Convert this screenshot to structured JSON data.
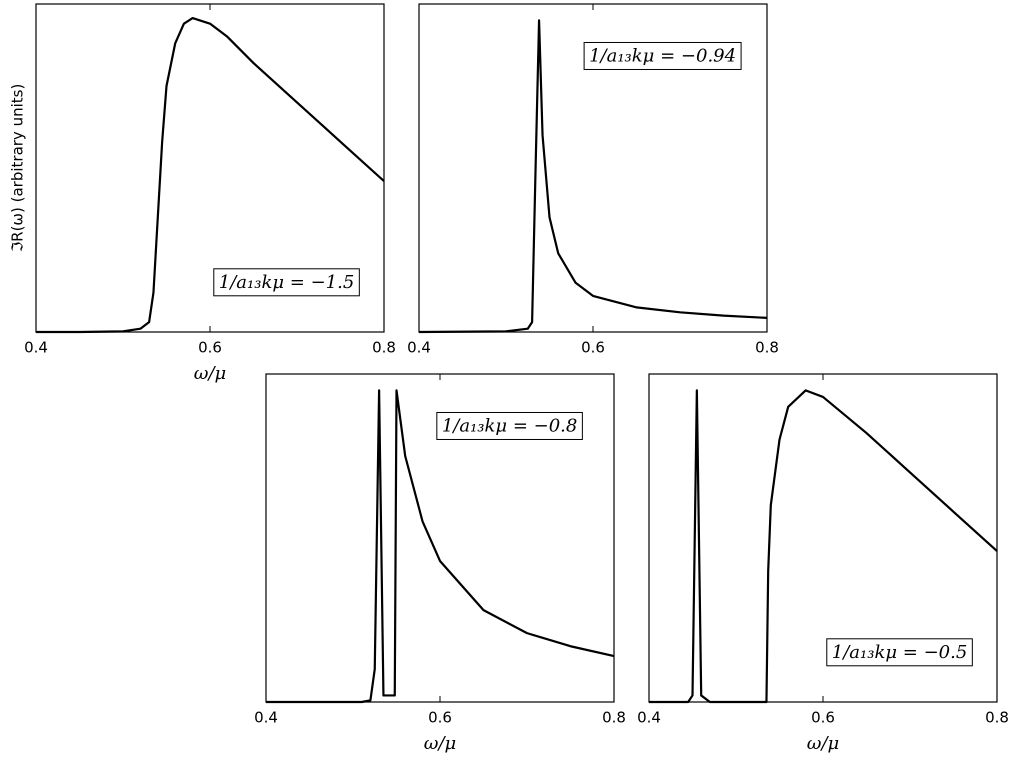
{
  "chart_data": [
    {
      "type": "line",
      "ylabel": "ℑR(ω) (arbitrary units)",
      "xlabel": "ω/μ",
      "annotation": "1/a₁₃kμ = −1.5",
      "x": [
        0.4,
        0.45,
        0.5,
        0.52,
        0.53,
        0.535,
        0.54,
        0.545,
        0.55,
        0.56,
        0.57,
        0.58,
        0.6,
        0.62,
        0.65,
        0.7,
        0.75,
        0.8
      ],
      "values": [
        0,
        0,
        0.002,
        0.01,
        0.03,
        0.12,
        0.35,
        0.58,
        0.75,
        0.88,
        0.94,
        0.957,
        0.94,
        0.9,
        0.82,
        0.7,
        0.58,
        0.46
      ],
      "color": "#000000",
      "xlim": [
        0.4,
        0.8
      ],
      "xticks": [
        0.4,
        0.6,
        0.8
      ],
      "ylim": [
        0,
        1
      ]
    },
    {
      "type": "line",
      "annotation": "1/a₁₃kμ = −0.94",
      "x": [
        0.4,
        0.5,
        0.525,
        0.53,
        0.534,
        0.538,
        0.542,
        0.55,
        0.56,
        0.58,
        0.6,
        0.65,
        0.7,
        0.75,
        0.8
      ],
      "values": [
        0,
        0.002,
        0.01,
        0.03,
        0.5,
        0.95,
        0.6,
        0.35,
        0.24,
        0.15,
        0.11,
        0.075,
        0.06,
        0.05,
        0.043
      ],
      "color": "#000000",
      "xlim": [
        0.4,
        0.8
      ],
      "xticks": [
        0.4,
        0.6,
        0.8
      ],
      "ylim": [
        0,
        1
      ]
    },
    {
      "type": "line",
      "xlabel": "ω/μ",
      "annotation": "1/a₁₃kμ = −0.8",
      "x": [
        0.4,
        0.51,
        0.52,
        0.525,
        0.53,
        0.535,
        0.54,
        0.545,
        0.548,
        0.55,
        0.555,
        0.56,
        0.58,
        0.6,
        0.65,
        0.7,
        0.75,
        0.8
      ],
      "values": [
        0,
        0,
        0.005,
        0.1,
        0.95,
        0.02,
        0.02,
        0.02,
        0.02,
        0.95,
        0.85,
        0.75,
        0.55,
        0.43,
        0.28,
        0.21,
        0.17,
        0.14
      ],
      "color": "#000000",
      "xlim": [
        0.4,
        0.8
      ],
      "xticks": [
        0.4,
        0.6,
        0.8
      ],
      "ylim": [
        0,
        1
      ]
    },
    {
      "type": "line",
      "xlabel": "ω/μ",
      "annotation": "1/a₁₃kμ = −0.5",
      "x": [
        0.4,
        0.445,
        0.45,
        0.455,
        0.46,
        0.47,
        0.535,
        0.537,
        0.54,
        0.55,
        0.56,
        0.58,
        0.6,
        0.65,
        0.7,
        0.75,
        0.8
      ],
      "values": [
        0,
        0,
        0.02,
        0.95,
        0.02,
        0,
        0,
        0.4,
        0.6,
        0.8,
        0.9,
        0.95,
        0.93,
        0.82,
        0.7,
        0.58,
        0.46
      ],
      "color": "#000000",
      "xlim": [
        0.4,
        0.8
      ],
      "xticks": [
        0.4,
        0.6,
        0.8
      ],
      "ylim": [
        0,
        1
      ]
    }
  ]
}
